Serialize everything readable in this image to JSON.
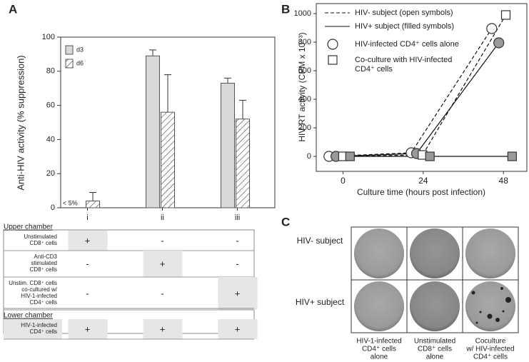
{
  "chart_data": [
    {
      "type": "bar",
      "panel": "A",
      "ylabel": "Anti-HIV activity (% suppression)",
      "categories": [
        "i",
        "ii",
        "iii"
      ],
      "ylim": [
        0,
        100
      ],
      "yticks": [
        0,
        20,
        40,
        60,
        80,
        100
      ],
      "legend": "top-left",
      "series": [
        {
          "name": "d3",
          "color": "#d9d9d9",
          "pattern": "solid",
          "values": [
            null,
            89,
            73
          ],
          "errors": [
            null,
            3.5,
            3
          ]
        },
        {
          "name": "d6",
          "color": "#ffffff",
          "pattern": "hatched",
          "values": [
            4,
            56,
            52
          ],
          "errors": [
            5,
            22,
            11
          ]
        }
      ],
      "annotations": [
        "< 5%"
      ]
    },
    {
      "type": "line",
      "panel": "B",
      "xlabel": "Culture time (hours post infection)",
      "ylabel": "HIV RT activity (CPM  x 10⁻³)",
      "xlim": [
        -8,
        55
      ],
      "xticks": [
        0,
        24,
        48
      ],
      "ylim": [
        -105,
        1070
      ],
      "yticks": [
        0,
        200,
        400,
        600,
        800,
        1000
      ],
      "legend": "top-left",
      "legend_lines": [
        {
          "label": "HIV- subject (open symbols)",
          "line_style": "dashed"
        },
        {
          "label": "HIV+ subject (filled symbols)",
          "line_style": "solid"
        }
      ],
      "legend_markers": [
        {
          "label": [
            "HIV-infected CD4⁺ cells alone"
          ],
          "marker": "circle"
        },
        {
          "label": [
            "Co-culture with HIV-infected",
            "CD4⁺ cells"
          ],
          "marker": "square"
        }
      ],
      "series": [
        {
          "marker": "circle",
          "filled": false,
          "line_style": "dashed",
          "x": [
            -4.2,
            20.4,
            44.5
          ],
          "values": [
            0,
            25,
            895
          ]
        },
        {
          "marker": "circle",
          "filled": true,
          "line_style": "solid",
          "x": [
            -2.1,
            22,
            46.6
          ],
          "values": [
            0,
            20,
            795
          ]
        },
        {
          "marker": "square",
          "filled": false,
          "line_style": "dashed",
          "x": [
            0,
            23.8,
            48.7
          ],
          "values": [
            0,
            10,
            990
          ]
        },
        {
          "marker": "square",
          "filled": true,
          "line_style": "solid",
          "x": [
            2.1,
            26,
            50.6
          ],
          "values": [
            0,
            0,
            0
          ]
        }
      ]
    }
  ],
  "table": {
    "sections": [
      {
        "title": "Upper chamber",
        "rows": [
          {
            "label": [
              "Unstimulated",
              "CD8⁺ cells"
            ],
            "cells": [
              "+",
              "-",
              "-"
            ],
            "shaded": [
              true,
              false,
              false
            ]
          },
          {
            "label": [
              "Anti-CD3",
              "stimulated",
              "CD8⁺ cells"
            ],
            "cells": [
              "-",
              "+",
              "-"
            ],
            "shaded": [
              false,
              true,
              false
            ]
          },
          {
            "label": [
              "Unstim. CD8⁺ cells",
              "co-cultured w/",
              "HIV-1-infected",
              "CD4⁺ cells"
            ],
            "cells": [
              "-",
              "-",
              "+"
            ],
            "shaded": [
              false,
              false,
              true
            ]
          }
        ]
      },
      {
        "title": "Lower chamber",
        "rows": [
          {
            "label": [
              "HIV-1-infected",
              "CD4⁺ cells"
            ],
            "cells": [
              "+",
              "+",
              "+"
            ],
            "shaded": [
              true,
              true,
              true
            ]
          }
        ]
      }
    ]
  },
  "panel_c": {
    "panel": "C",
    "rows": [
      "HIV- subject",
      "HIV+ subject"
    ],
    "columns": [
      [
        "HIV-1-infected",
        "CD4⁺ cells",
        "alone"
      ],
      [
        "Unstimulated",
        "CD8⁺ cells",
        "alone"
      ],
      [
        "Coculture",
        "w/ HIV-infected",
        "CD4⁺ cells"
      ]
    ]
  }
}
